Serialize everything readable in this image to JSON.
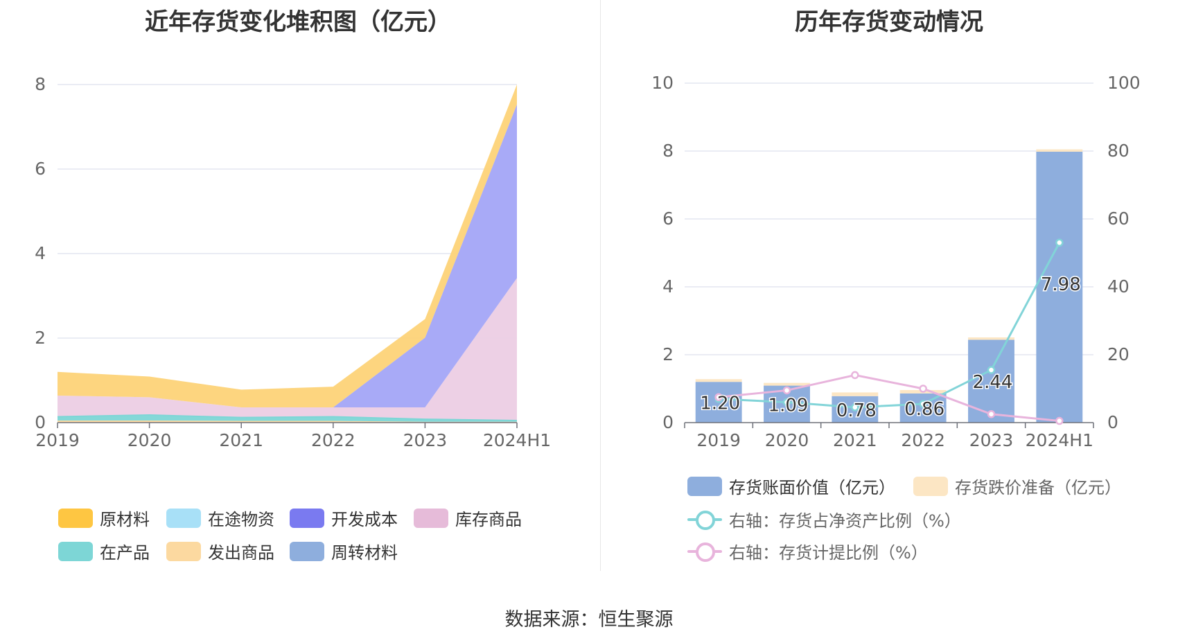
{
  "left_title": "近年存货变化堆积图（亿元）",
  "right_title": "历年存货变动情况",
  "source": "数据来源：恒生聚源",
  "chart_data": [
    {
      "type": "area",
      "stacked": true,
      "title": "近年存货变化堆积图（亿元）",
      "categories": [
        "2019",
        "2020",
        "2021",
        "2022",
        "2023",
        "2024H1"
      ],
      "ylim": [
        0,
        8
      ],
      "yticks": [
        0,
        2,
        4,
        6,
        8
      ],
      "grid": true,
      "legend_position": "bottom",
      "series": [
        {
          "name": "发出商品",
          "color": "#fcd9a0",
          "values": [
            0.05,
            0.05,
            0.04,
            0.04,
            0.02,
            0.02
          ]
        },
        {
          "name": "周转材料",
          "color": "#8eaedd",
          "values": [
            0.0,
            0.0,
            0.0,
            0.0,
            0.0,
            0.0
          ]
        },
        {
          "name": "在产品",
          "color": "#7dd6d6",
          "values": [
            0.09,
            0.13,
            0.08,
            0.1,
            0.06,
            0.03
          ]
        },
        {
          "name": "在途物资",
          "color": "#a8e0f7",
          "values": [
            0.0,
            0.0,
            0.0,
            0.0,
            0.0,
            0.0
          ]
        },
        {
          "name": "库存商品",
          "color": "#eccde4",
          "values": [
            0.5,
            0.42,
            0.24,
            0.22,
            0.28,
            3.37
          ]
        },
        {
          "name": "开发成本",
          "color": "#a3a5f7",
          "values": [
            0.0,
            0.0,
            0.0,
            0.0,
            1.65,
            4.11
          ]
        },
        {
          "name": "原材料",
          "color": "#fdd378",
          "values": [
            0.56,
            0.49,
            0.42,
            0.49,
            0.44,
            0.47
          ]
        }
      ],
      "legend": [
        {
          "name": "原材料",
          "color": "#fec642"
        },
        {
          "name": "在途物资",
          "color": "#a8e0f7"
        },
        {
          "name": "开发成本",
          "color": "#7a7af0"
        },
        {
          "name": "库存商品",
          "color": "#e6bbd9"
        },
        {
          "name": "在产品",
          "color": "#7dd6d6"
        },
        {
          "name": "发出商品",
          "color": "#fcd9a0"
        },
        {
          "name": "周转材料",
          "color": "#8eaedd"
        }
      ]
    },
    {
      "type": "bar",
      "stacked": true,
      "title": "历年存货变动情况",
      "categories": [
        "2019",
        "2020",
        "2021",
        "2022",
        "2023",
        "2024H1"
      ],
      "ylim": [
        0,
        10
      ],
      "yticks": [
        0,
        2,
        4,
        6,
        8,
        10
      ],
      "y2lim": [
        0,
        100
      ],
      "y2ticks": [
        0,
        20,
        40,
        60,
        80,
        100
      ],
      "grid": true,
      "legend_position": "bottom",
      "bars": [
        {
          "name": "存货账面价值（亿元）",
          "color": "#8eaedd",
          "values": [
            1.2,
            1.09,
            0.78,
            0.86,
            2.44,
            7.98
          ],
          "labels": [
            "1.20",
            "1.09",
            "0.78",
            "0.86",
            "2.44",
            "7.98"
          ]
        },
        {
          "name": "存货跌价准备（亿元）",
          "color": "#fce6c4",
          "values": [
            0.08,
            0.08,
            0.11,
            0.1,
            0.07,
            0.07
          ]
        }
      ],
      "lines": [
        {
          "name": "右轴：存货占净资产比例（%）",
          "color": "#82d4d8",
          "values": [
            7,
            6,
            4.5,
            5.5,
            15.5,
            53
          ]
        },
        {
          "name": "右轴：存货计提比例（%）",
          "color": "#e8b4dc",
          "values": [
            7.5,
            9.5,
            14,
            10,
            2.5,
            0.5
          ]
        }
      ]
    }
  ]
}
